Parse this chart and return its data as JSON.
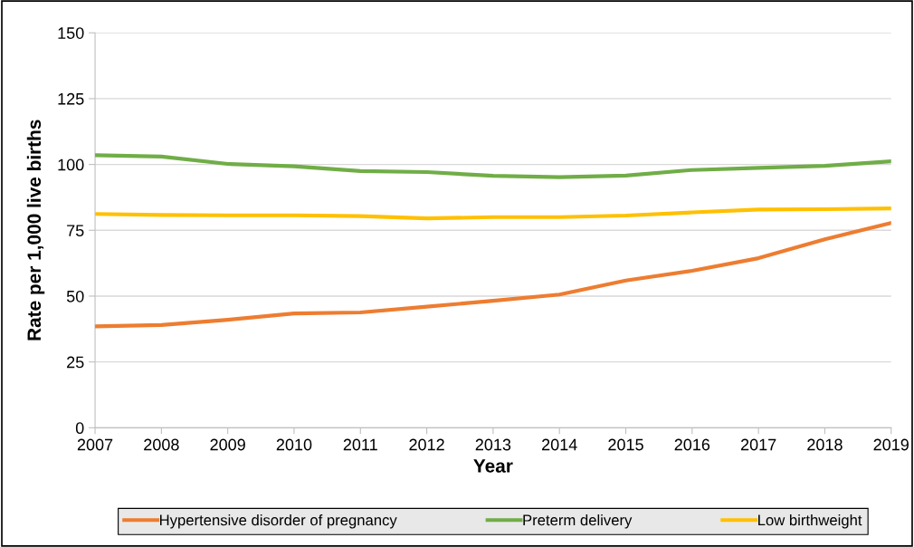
{
  "chart_data": {
    "type": "line",
    "xlabel": "Year",
    "ylabel": "Rate per 1,000 live births",
    "x": [
      2007,
      2008,
      2009,
      2010,
      2011,
      2012,
      2013,
      2014,
      2015,
      2016,
      2017,
      2018,
      2019
    ],
    "series": [
      {
        "name": "Hypertensive disorder of pregnancy",
        "color": "#ed7d31",
        "values": [
          38.5,
          39,
          41,
          43.4,
          43.8,
          46,
          48.2,
          50.6,
          55.9,
          59.6,
          64.4,
          71.6,
          77.8
        ]
      },
      {
        "name": "Preterm delivery",
        "color": "#70ad47",
        "values": [
          103.5,
          103,
          100.2,
          99.3,
          97.5,
          97.1,
          95.7,
          95.2,
          95.8,
          97.9,
          98.7,
          99.5,
          101.2
        ]
      },
      {
        "name": "Low birthweight",
        "color": "#ffc000",
        "values": [
          81.2,
          80.8,
          80.7,
          80.7,
          80.4,
          79.5,
          80,
          80,
          80.6,
          81.8,
          82.9,
          83,
          83.3
        ]
      }
    ],
    "xlim": [
      2007,
      2019
    ],
    "xticks": [
      2007,
      2008,
      2009,
      2010,
      2011,
      2012,
      2013,
      2014,
      2015,
      2016,
      2017,
      2018,
      2019
    ],
    "ylim": [
      0,
      150
    ],
    "yticks": [
      0,
      25,
      50,
      75,
      100,
      125,
      150
    ],
    "grid": "y",
    "legend": "bottom",
    "marker": "none",
    "line_style": "solid"
  }
}
